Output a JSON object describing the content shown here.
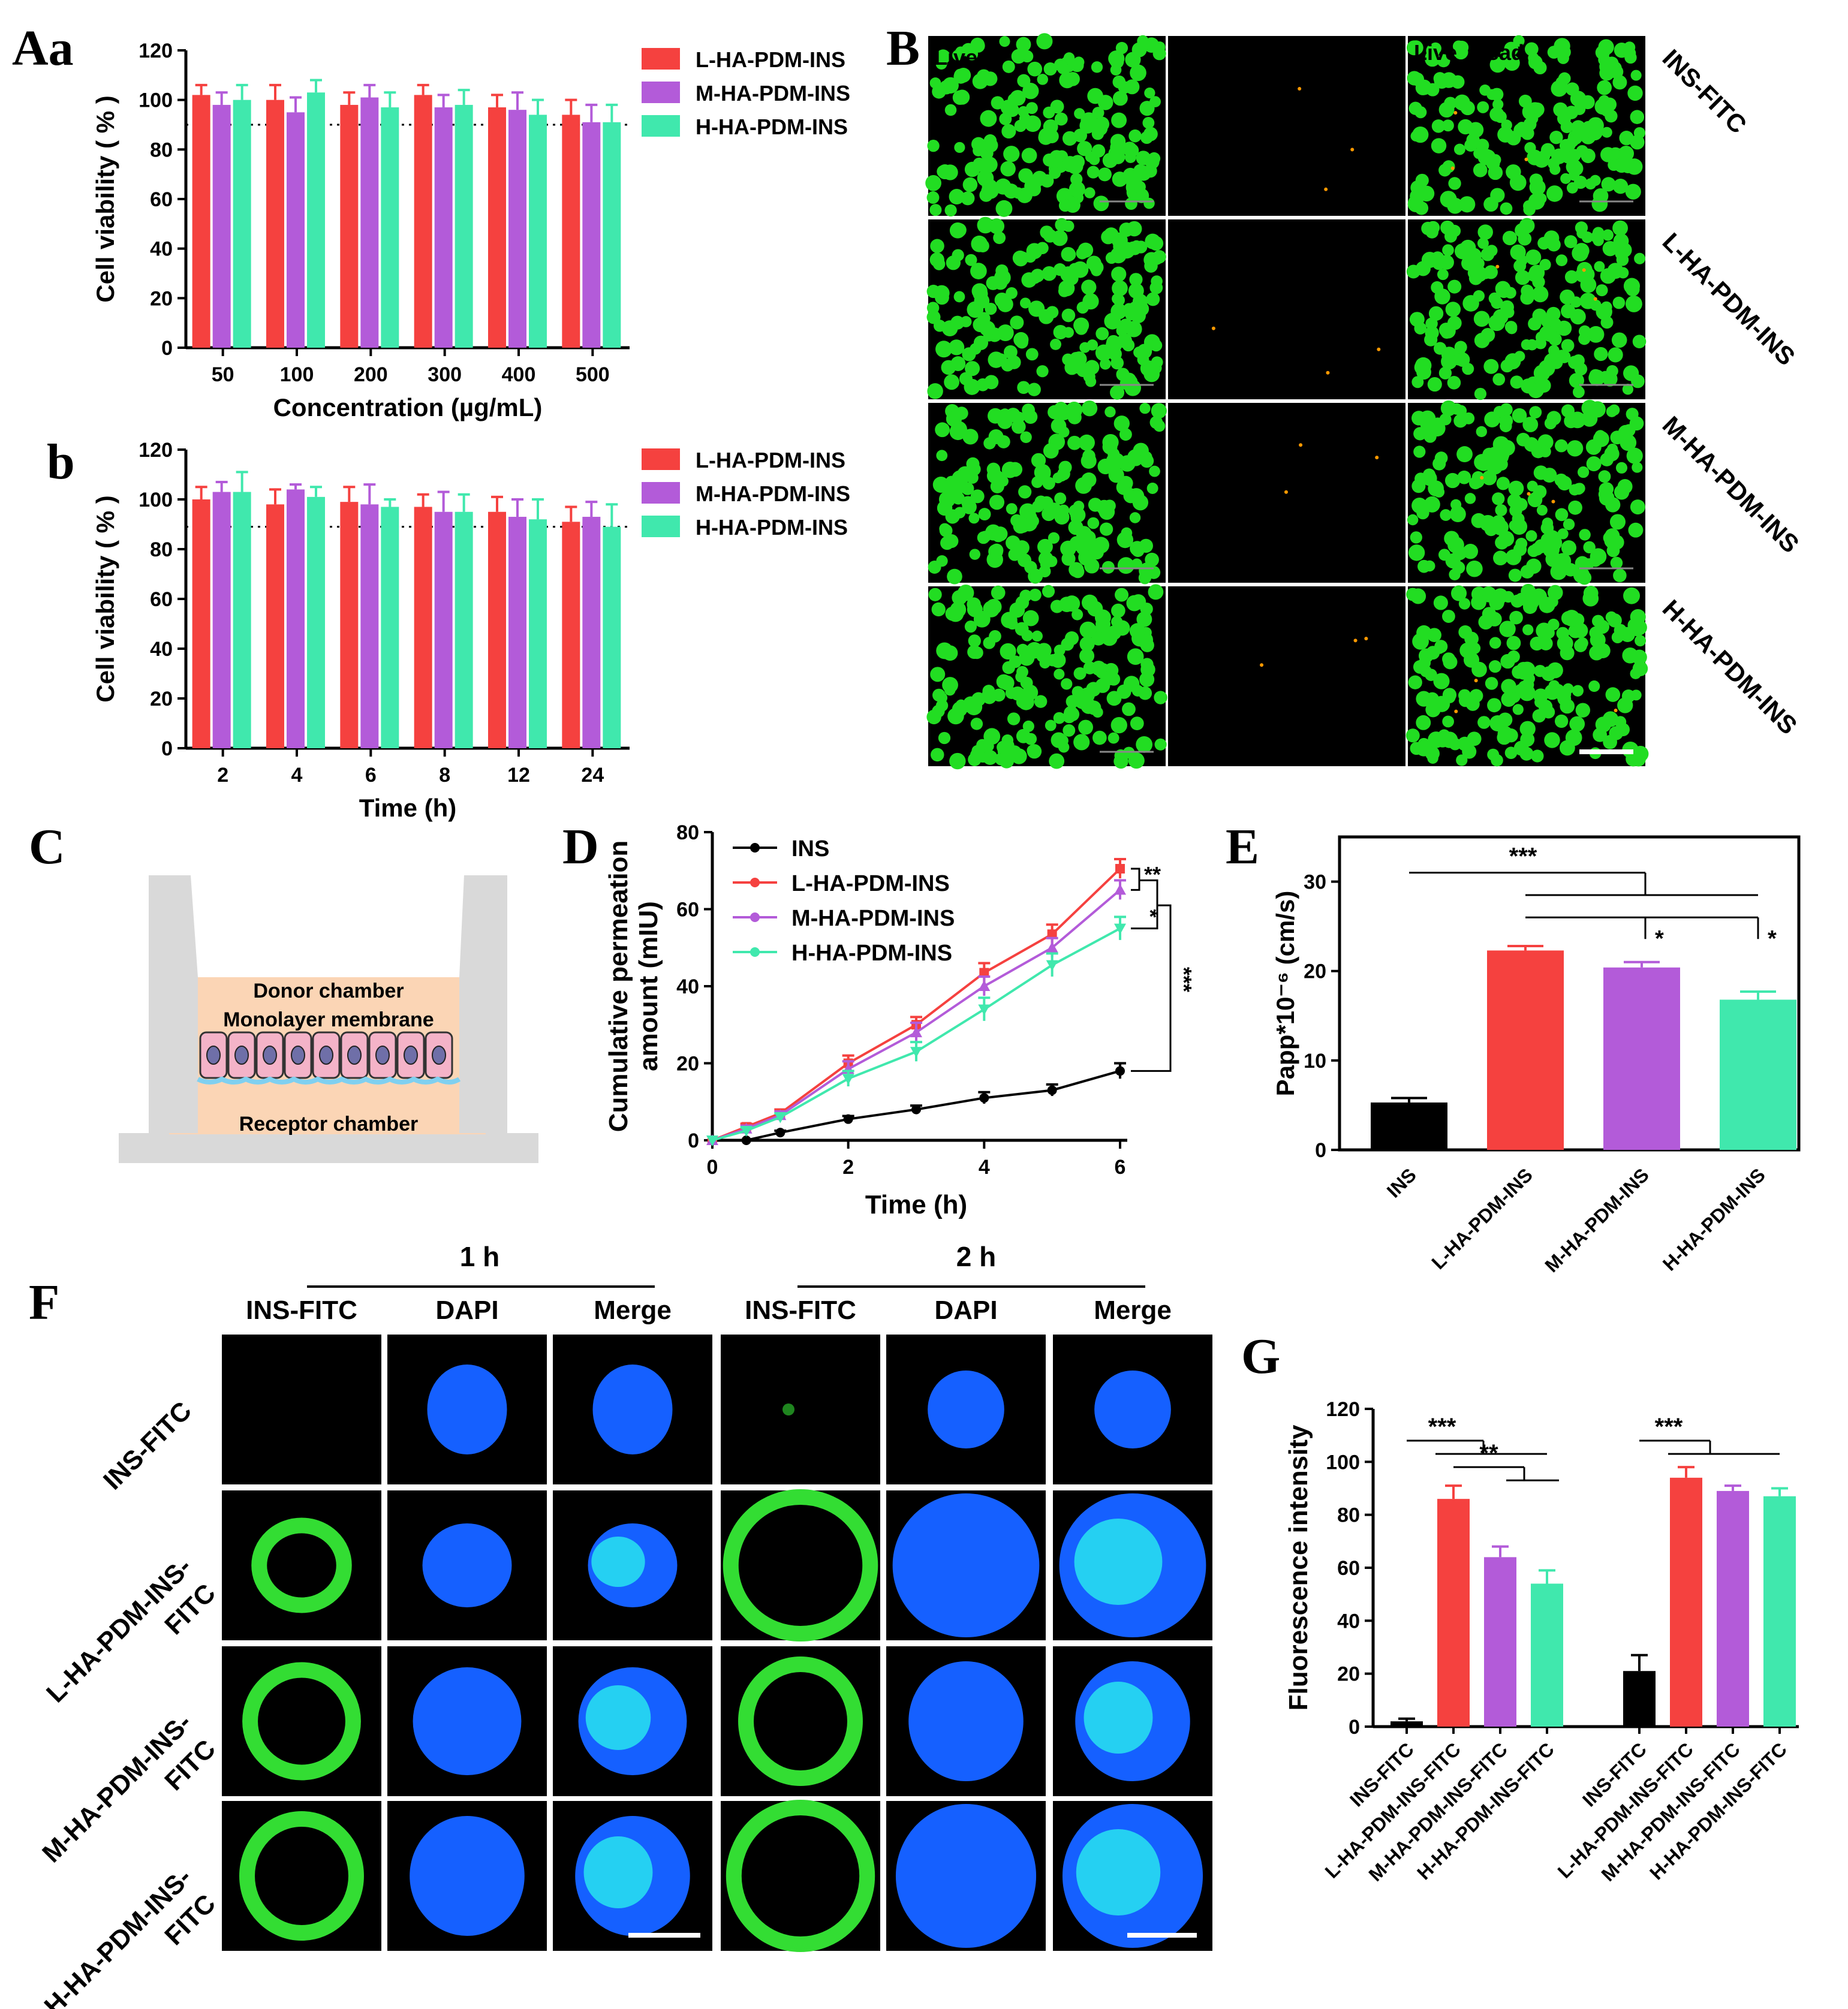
{
  "colors": {
    "red": "#f5413f",
    "purple": "#b35bd9",
    "green": "#40e8ad",
    "black": "#000000",
    "live": "#22dd22",
    "dead": "#ff9900",
    "dapi": "#1560ff",
    "fitc": "#33dd33",
    "cyan": "#28e4f0"
  },
  "series_names": [
    "L-HA-PDM-INS",
    "M-HA-PDM-INS",
    "H-HA-PDM-INS"
  ],
  "panel_labels": {
    "Aa": "Aa",
    "b": "b",
    "B": "B",
    "C": "C",
    "D": "D",
    "E": "E",
    "F": "F",
    "G": "G"
  },
  "panelB": {
    "columns": [
      "Live",
      "Dead",
      "Live",
      "Dead"
    ],
    "rows": [
      "INS-FITC",
      "L-HA-PDM-INS",
      "M-HA-PDM-INS",
      "H-HA-PDM-INS"
    ]
  },
  "panelC": {
    "donor": "Donor chamber",
    "membrane": "Monolayer membrane",
    "receptor": "Receptor chamber"
  },
  "panelF": {
    "groups": [
      "1 h",
      "2 h"
    ],
    "columns": [
      "INS-FITC",
      "DAPI",
      "Merge",
      "INS-FITC",
      "DAPI",
      "Merge"
    ],
    "rows": [
      "INS-FITC",
      "L-HA-PDM-INS-\nFITC",
      "M-HA-PDM-INS-\nFITC",
      "H-HA-PDM-INS-\nFITC"
    ],
    "row_lines": [
      [
        "INS-FITC"
      ],
      [
        "L-HA-PDM-INS-",
        "FITC"
      ],
      [
        "M-HA-PDM-INS-",
        "FITC"
      ],
      [
        "H-HA-PDM-INS-",
        "FITC"
      ]
    ]
  },
  "chart_data": [
    {
      "id": "Aa",
      "type": "bar",
      "categories": [
        "50",
        "100",
        "200",
        "300",
        "400",
        "500"
      ],
      "xlabel": "Concentration (µg/mL)",
      "ylabel": "Cell viability ( % )",
      "ylim": [
        0,
        120
      ],
      "yticks": [
        0,
        20,
        40,
        60,
        80,
        100,
        120
      ],
      "ref_line": 90,
      "legend": "top-right",
      "series": [
        {
          "name": "L-HA-PDM-INS",
          "values": [
            102,
            100,
            98,
            102,
            97,
            94
          ],
          "errors": [
            4,
            6,
            5,
            4,
            5,
            6
          ]
        },
        {
          "name": "M-HA-PDM-INS",
          "values": [
            98,
            95,
            101,
            97,
            96,
            91
          ],
          "errors": [
            5,
            6,
            5,
            5,
            7,
            7
          ]
        },
        {
          "name": "H-HA-PDM-INS",
          "values": [
            100,
            103,
            97,
            98,
            94,
            91
          ],
          "errors": [
            6,
            5,
            6,
            6,
            6,
            7
          ]
        }
      ]
    },
    {
      "id": "b",
      "type": "bar",
      "categories": [
        "2",
        "4",
        "6",
        "8",
        "12",
        "24"
      ],
      "xlabel": "Time (h)",
      "ylabel": "Cell viability ( % )",
      "ylim": [
        0,
        120
      ],
      "yticks": [
        0,
        20,
        40,
        60,
        80,
        100,
        120
      ],
      "ref_line": 89,
      "legend": "top-right",
      "series": [
        {
          "name": "L-HA-PDM-INS",
          "values": [
            100,
            98,
            99,
            97,
            95,
            91
          ],
          "errors": [
            5,
            6,
            6,
            5,
            6,
            6
          ]
        },
        {
          "name": "M-HA-PDM-INS",
          "values": [
            103,
            104,
            98,
            95,
            93,
            93
          ],
          "errors": [
            4,
            2,
            8,
            8,
            7,
            6
          ]
        },
        {
          "name": "H-HA-PDM-INS",
          "values": [
            103,
            101,
            97,
            95,
            92,
            89
          ],
          "errors": [
            8,
            4,
            3,
            7,
            8,
            9
          ]
        }
      ]
    },
    {
      "id": "D",
      "type": "line",
      "xlabel": "Time (h)",
      "ylabel": "Cumulative permeation\namount (mIU)",
      "xlim": [
        0,
        6
      ],
      "xticks": [
        0,
        2,
        4,
        6
      ],
      "ylim": [
        0,
        80
      ],
      "yticks": [
        0,
        20,
        40,
        60,
        80
      ],
      "legend": "top-left",
      "x": [
        0,
        0.5,
        1,
        2,
        3,
        4,
        5,
        6
      ],
      "series": [
        {
          "name": "INS",
          "values": [
            0,
            0,
            2,
            5.5,
            8,
            11,
            13,
            18
          ],
          "errors": [
            0,
            0,
            0.5,
            0.8,
            1,
            1.5,
            1.5,
            2
          ]
        },
        {
          "name": "L-HA-PDM-INS",
          "values": [
            0,
            3.5,
            7,
            20,
            30,
            43.5,
            53.5,
            70.5
          ],
          "errors": [
            0,
            0.8,
            1,
            2,
            2,
            2.5,
            2.5,
            2.5
          ]
        },
        {
          "name": "M-HA-PDM-INS",
          "values": [
            0,
            3,
            6.5,
            18.5,
            28,
            40,
            50,
            65
          ],
          "errors": [
            0,
            0.8,
            1,
            2,
            2.5,
            2.5,
            2.5,
            2.5
          ]
        },
        {
          "name": "H-HA-PDM-INS",
          "values": [
            0,
            2.5,
            6,
            16,
            23,
            34,
            45.5,
            55
          ],
          "errors": [
            0,
            0.8,
            1,
            2,
            2.5,
            3,
            3,
            3
          ]
        }
      ],
      "significance": [
        "**",
        "*",
        "***"
      ]
    },
    {
      "id": "E",
      "type": "bar",
      "categories": [
        "INS",
        "L-HA-PDM-INS",
        "M-HA-PDM-INS",
        "H-HA-PDM-INS"
      ],
      "ylabel": "Papp*10⁻⁶ (cm/s)",
      "ylim": [
        0,
        35
      ],
      "yticks": [
        0,
        10,
        20,
        30
      ],
      "values": [
        5.3,
        22.3,
        20.4,
        16.8
      ],
      "errors": [
        0.5,
        0.5,
        0.6,
        0.9
      ],
      "significance": [
        "***",
        "*",
        "*"
      ]
    },
    {
      "id": "G",
      "type": "bar",
      "categories": [
        "INS-FITC",
        "L-HA-PDM-INS-FITC",
        "M-HA-PDM-INS-FITC",
        "H-HA-PDM-INS-FITC",
        "INS-FITC",
        "L-HA-PDM-INS-FITC",
        "M-HA-PDM-INS-FITC",
        "H-HA-PDM-INS-FITC"
      ],
      "ylabel": "Fluorescence intensity",
      "ylim": [
        0,
        120
      ],
      "yticks": [
        0,
        20,
        40,
        60,
        80,
        100,
        120
      ],
      "values": [
        2,
        86,
        64,
        54,
        21,
        94,
        89,
        87
      ],
      "errors": [
        1,
        5,
        4,
        5,
        6,
        4,
        2,
        3
      ],
      "significance": [
        "***",
        "**",
        "***"
      ]
    }
  ]
}
